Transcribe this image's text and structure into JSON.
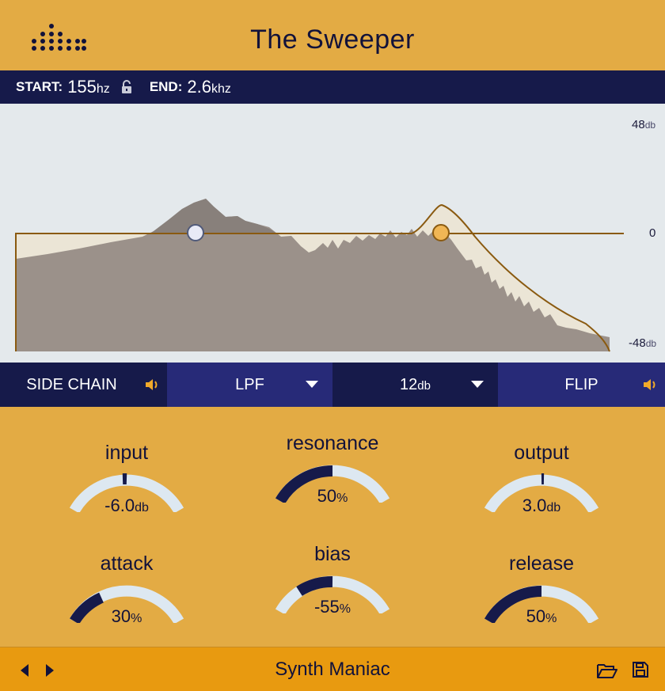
{
  "header": {
    "title": "The Sweeper",
    "logo_icon": "dot-matrix-logo-icon"
  },
  "range": {
    "start_label": "START:",
    "start_value": "155",
    "start_unit": "hz",
    "lock_icon": "lock-open-icon",
    "end_label": "END:",
    "end_value": "2.6",
    "end_unit": "khz"
  },
  "graph": {
    "top_label": "48",
    "top_unit": "db",
    "mid_label": "0",
    "bottom_label": "-48",
    "bottom_unit": "db"
  },
  "controls": {
    "sidechain_label": "SIDE CHAIN",
    "filter_type": "LPF",
    "slope_value": "12",
    "slope_unit": "db",
    "flip_label": "FLIP"
  },
  "knobs": {
    "input": {
      "name": "input",
      "value": "-6.0",
      "unit": "db"
    },
    "resonance": {
      "name": "resonance",
      "value": "50",
      "unit": "%"
    },
    "output": {
      "name": "output",
      "value": "3.0",
      "unit": "db"
    },
    "attack": {
      "name": "attack",
      "value": "30",
      "unit": "%"
    },
    "bias": {
      "name": "bias",
      "value": "-55",
      "unit": "%"
    },
    "release": {
      "name": "release",
      "value": "50",
      "unit": "%"
    }
  },
  "footer": {
    "preset_name": "Synth Maniac"
  },
  "colors": {
    "accent": "#e3ab44",
    "navy": "#161a4a",
    "indigo": "#272a78",
    "orange": "#f1a92a",
    "track": "#dde8f1"
  }
}
